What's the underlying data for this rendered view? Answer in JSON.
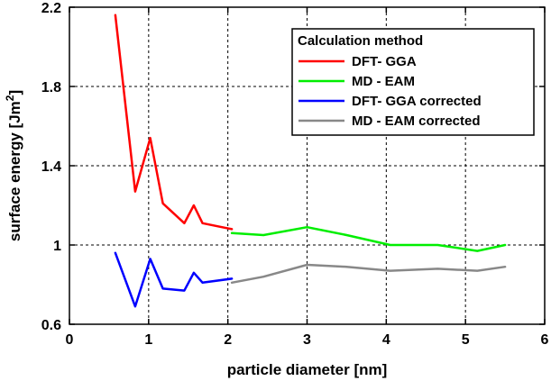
{
  "chart_data": {
    "type": "line",
    "title": "",
    "xlabel": "particle diameter [nm]",
    "ylabel_main": "surface energy [Jm",
    "ylabel_sup": "2",
    "ylabel_close": "]",
    "xlim": [
      0,
      6
    ],
    "ylim": [
      0.6,
      2.2
    ],
    "xticks": [
      0,
      1,
      2,
      3,
      4,
      5,
      6
    ],
    "yticks": [
      0.6,
      1,
      1.4,
      1.8,
      2.2
    ],
    "xtick_labels": [
      "0",
      "1",
      "2",
      "3",
      "4",
      "5",
      "6"
    ],
    "ytick_labels": [
      "0.6",
      "1",
      "1.4",
      "1.8",
      "2.2"
    ],
    "grid": true,
    "legend_position": "top-right",
    "legend_title": "Calculation method",
    "series": [
      {
        "name": "DFT- GGA",
        "color": "#ff0000",
        "x": [
          0.58,
          0.83,
          1.02,
          1.18,
          1.45,
          1.57,
          1.68,
          2.05
        ],
        "y": [
          2.16,
          1.27,
          1.54,
          1.21,
          1.11,
          1.2,
          1.11,
          1.08
        ]
      },
      {
        "name": "MD - EAM",
        "color": "#00ee00",
        "x": [
          2.05,
          2.45,
          3.0,
          3.5,
          4.05,
          4.65,
          5.15,
          5.5
        ],
        "y": [
          1.06,
          1.05,
          1.09,
          1.05,
          1.0,
          1.0,
          0.97,
          1.0
        ]
      },
      {
        "name": "DFT- GGA corrected",
        "color": "#0000ff",
        "x": [
          0.58,
          0.83,
          1.02,
          1.18,
          1.45,
          1.57,
          1.68,
          2.05
        ],
        "y": [
          0.96,
          0.69,
          0.93,
          0.78,
          0.77,
          0.86,
          0.81,
          0.83
        ]
      },
      {
        "name": "MD - EAM corrected",
        "color": "#888888",
        "x": [
          2.05,
          2.45,
          3.0,
          3.5,
          4.05,
          4.65,
          5.15,
          5.5
        ],
        "y": [
          0.81,
          0.84,
          0.9,
          0.89,
          0.87,
          0.88,
          0.87,
          0.89
        ]
      }
    ]
  }
}
